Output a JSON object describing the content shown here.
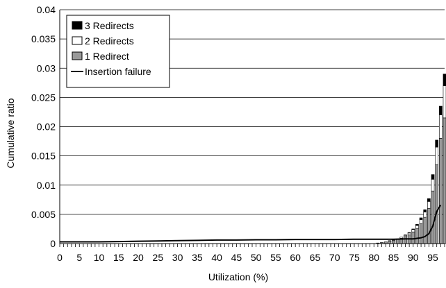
{
  "chart_data": {
    "type": "bar",
    "stacked": true,
    "xlabel": "Utilization (%)",
    "ylabel": "Cumulative ratio",
    "xlim": [
      0,
      98
    ],
    "ylim": [
      0,
      0.04
    ],
    "x_ticks": [
      0,
      5,
      10,
      15,
      20,
      25,
      30,
      35,
      40,
      45,
      50,
      55,
      60,
      65,
      70,
      75,
      80,
      85,
      90,
      95
    ],
    "y_ticks": [
      "0",
      "0.005",
      "0.01",
      "0.015",
      "0.02",
      "0.025",
      "0.03",
      "0.035",
      "0.04"
    ],
    "grid": "horizontal",
    "legend_position": "top-left",
    "x": [
      81,
      82,
      83,
      84,
      85,
      86,
      87,
      88,
      89,
      90,
      91,
      92,
      93,
      94,
      95,
      96,
      97,
      98
    ],
    "series": [
      {
        "name": "1 Redirect",
        "kind": "bar",
        "color": "#999999",
        "values": [
          0.0001,
          0.0002,
          0.0003,
          0.0004,
          0.0005,
          0.0007,
          0.0009,
          0.0012,
          0.0015,
          0.002,
          0.0026,
          0.0034,
          0.0045,
          0.006,
          0.009,
          0.0135,
          0.018,
          0.0215
        ]
      },
      {
        "name": "2 Redirects",
        "kind": "bar",
        "color": "#ffffff",
        "values": [
          0.0,
          0.0,
          0.0,
          0.0001,
          0.0001,
          0.0001,
          0.0002,
          0.0002,
          0.0003,
          0.0004,
          0.0005,
          0.0007,
          0.0009,
          0.0012,
          0.002,
          0.003,
          0.004,
          0.0055
        ]
      },
      {
        "name": "3 Redirects",
        "kind": "bar",
        "color": "#000000",
        "values": [
          0.0,
          0.0,
          0.0,
          0.0,
          0.0,
          0.0,
          0.0,
          0.0001,
          0.0001,
          0.0001,
          0.0002,
          0.0003,
          0.0004,
          0.0005,
          0.0008,
          0.0012,
          0.0015,
          0.002
        ]
      },
      {
        "name": "Insertion failure",
        "kind": "line",
        "color": "#000000",
        "x": [
          0,
          5,
          10,
          15,
          20,
          25,
          30,
          35,
          40,
          45,
          50,
          55,
          60,
          65,
          70,
          75,
          80,
          85,
          88,
          90,
          92,
          93,
          94,
          95,
          96,
          97
        ],
        "values": [
          0.0003,
          0.0003,
          0.0003,
          0.00035,
          0.0004,
          0.00045,
          0.0005,
          0.00055,
          0.0006,
          0.0006,
          0.00065,
          0.00065,
          0.0007,
          0.0007,
          0.0007,
          0.00075,
          0.00075,
          0.00075,
          0.0008,
          0.0008,
          0.001,
          0.0012,
          0.0017,
          0.003,
          0.0055,
          0.0066
        ]
      }
    ]
  }
}
